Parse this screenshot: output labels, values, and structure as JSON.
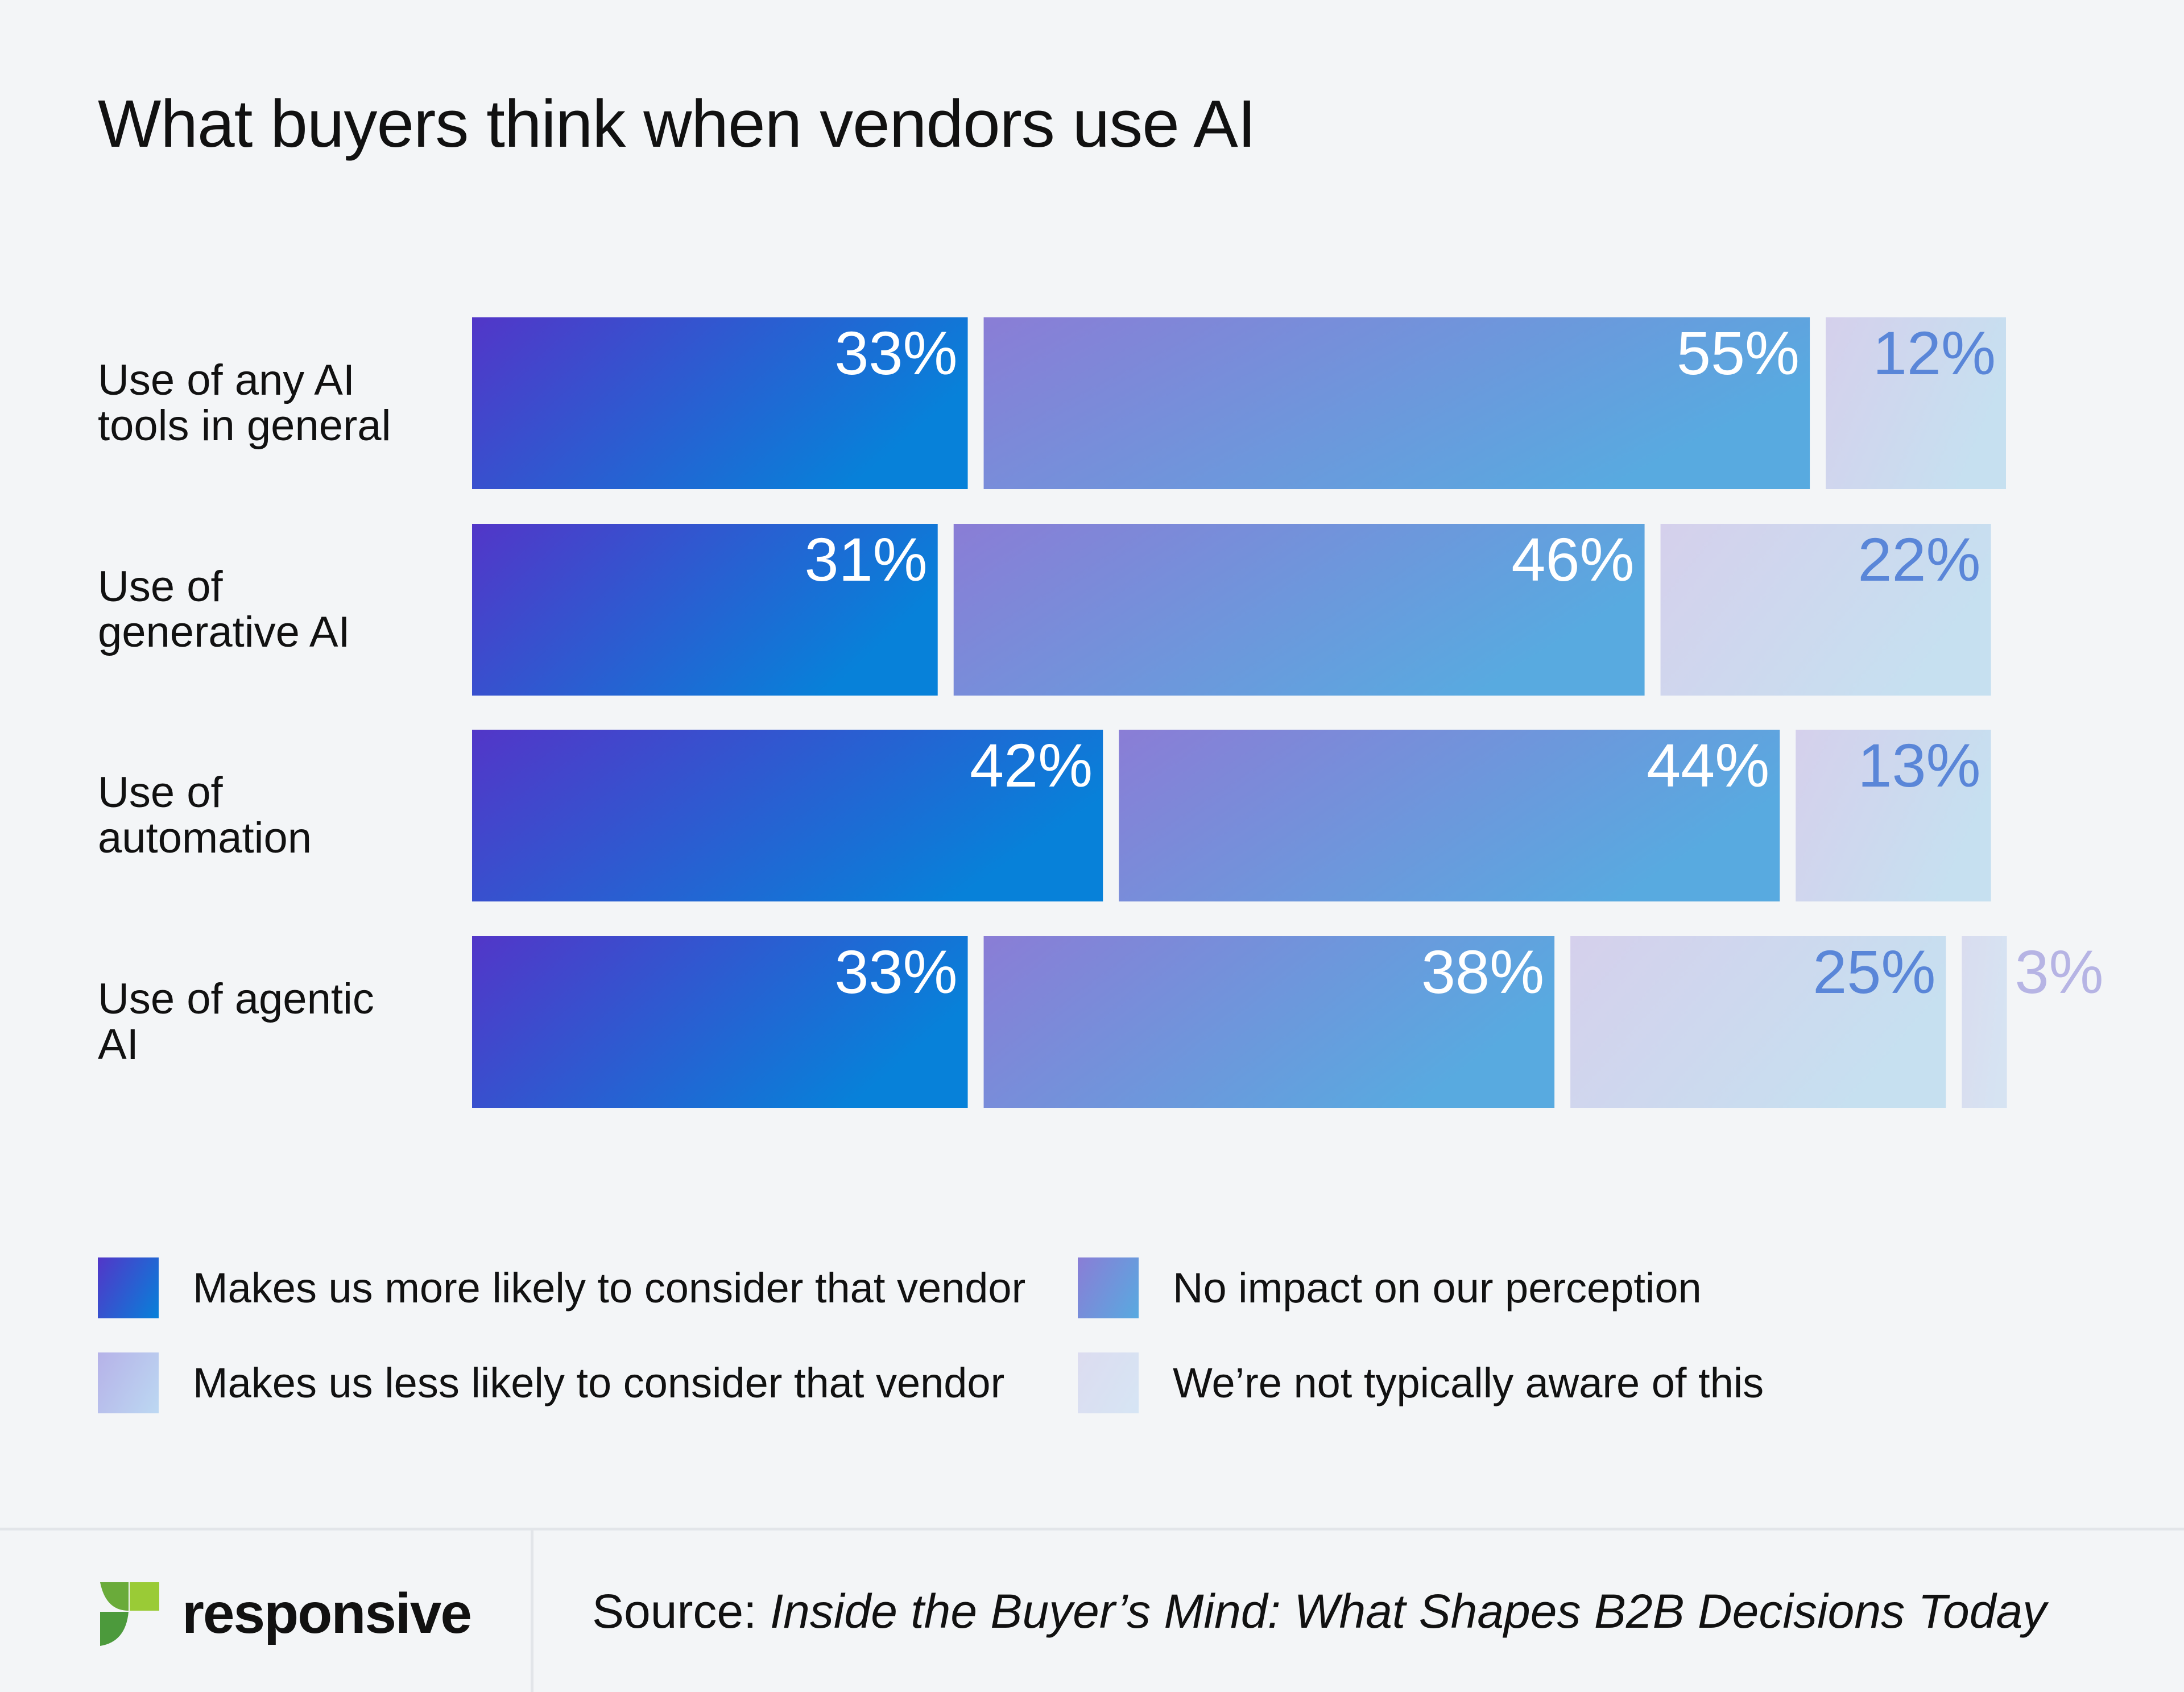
{
  "title": "What buyers think when vendors use AI",
  "chart_data": {
    "type": "bar",
    "orientation": "horizontal",
    "stacked": true,
    "title": "What buyers think when vendors use AI",
    "categories": [
      "Use of any AI tools in general",
      "Use of generative AI",
      "Use of automation",
      "Use of agentic AI"
    ],
    "category_lines": [
      [
        "Use of any AI",
        "tools in general"
      ],
      [
        "Use of",
        "generative AI"
      ],
      [
        "Use of",
        "automation"
      ],
      [
        "Use of agentic",
        "AI"
      ]
    ],
    "series": [
      {
        "name": "Makes us more likely to consider that vendor",
        "values": [
          33,
          31,
          42,
          33
        ],
        "colors": [
          "#5236c8",
          "#0781d9"
        ]
      },
      {
        "name": "No impact on our perception",
        "values": [
          55,
          46,
          44,
          38
        ],
        "colors": [
          "#8a7dd6",
          "#58aae0"
        ]
      },
      {
        "name": "Makes us less likely to consider that vendor",
        "values": [
          12,
          22,
          13,
          25
        ],
        "colors": [
          "#d5d0ec",
          "#c6e0f0"
        ]
      },
      {
        "name": "We’re not typically aware of this",
        "values": [
          0,
          0,
          0,
          3
        ],
        "colors": [
          "#d9dcef",
          "#d6e3f2"
        ]
      }
    ],
    "value_suffix": "%",
    "grid": false,
    "legend": "bottom"
  },
  "legend": [
    {
      "label": "Makes us more likely to consider that vendor"
    },
    {
      "label": "No impact on our perception"
    },
    {
      "label": "Makes us less likely to consider that vendor"
    },
    {
      "label": "We’re not typically aware of this"
    }
  ],
  "footer": {
    "logo_text": "responsive",
    "source_prefix": "Source: ",
    "source_title": "Inside the Buyer’s Mind: What Shapes B2B Decisions Today"
  }
}
